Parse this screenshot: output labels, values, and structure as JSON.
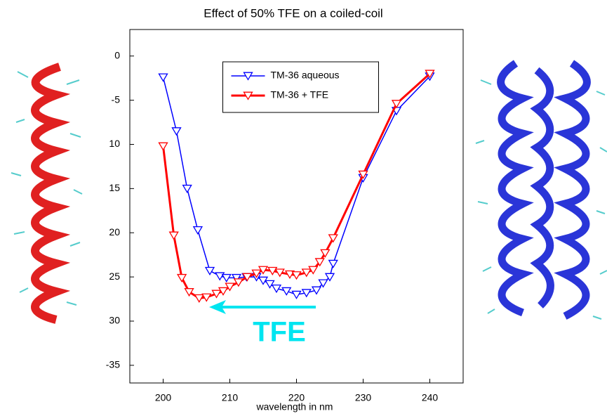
{
  "chart_data": {
    "type": "line",
    "title": "Effect of 50% TFE on a coiled-coil",
    "xlabel": "wavelength in nm",
    "annotation": "TFE",
    "xlim": [
      195,
      245
    ],
    "xticks": [
      200,
      210,
      220,
      230,
      240
    ],
    "ylim": [
      -37,
      3
    ],
    "yticks": [
      0,
      -5,
      {
        "value": -10,
        "label": "10"
      },
      {
        "value": -15,
        "label": "15"
      },
      {
        "value": -20,
        "label": "20"
      },
      {
        "value": -25,
        "label": "25"
      },
      {
        "value": -30,
        "label": "30"
      },
      -35
    ],
    "legend": "upper center",
    "series": [
      {
        "name": "TM-36 aqueous",
        "color": "#0000ff",
        "x": [
          200,
          202,
          203.6,
          205.2,
          207,
          208.5,
          209.5,
          211,
          212.5,
          214,
          215,
          216,
          217,
          218.5,
          220,
          221.5,
          223,
          224,
          225,
          225.5,
          230,
          235,
          240
        ],
        "values": [
          -2.4,
          -8.5,
          -15,
          -19.7,
          -24.3,
          -24.9,
          -25.1,
          -25.1,
          -25,
          -25,
          -25.4,
          -25.8,
          -26.3,
          -26.6,
          -27,
          -26.8,
          -26.5,
          -25.7,
          -25,
          -23.5,
          -13.8,
          -6.2,
          -2.3
        ]
      },
      {
        "name": "TM-36 + TFE",
        "color": "#ff0000",
        "x": [
          200,
          201.6,
          202.8,
          203.9,
          205.4,
          206.5,
          208,
          209,
          210,
          211.3,
          212.6,
          214,
          215,
          216.4,
          217.5,
          219,
          220,
          221.5,
          222.5,
          223.5,
          224.3,
          225.5,
          230,
          235,
          240
        ],
        "values": [
          -10.2,
          -20.3,
          -25.1,
          -26.7,
          -27.4,
          -27.3,
          -26.9,
          -26.6,
          -26.1,
          -25.6,
          -25,
          -24.6,
          -24.2,
          -24.3,
          -24.5,
          -24.7,
          -24.8,
          -24.5,
          -24.2,
          -23.3,
          -22.3,
          -20.6,
          -13.4,
          -5.4,
          -2
        ]
      }
    ]
  }
}
